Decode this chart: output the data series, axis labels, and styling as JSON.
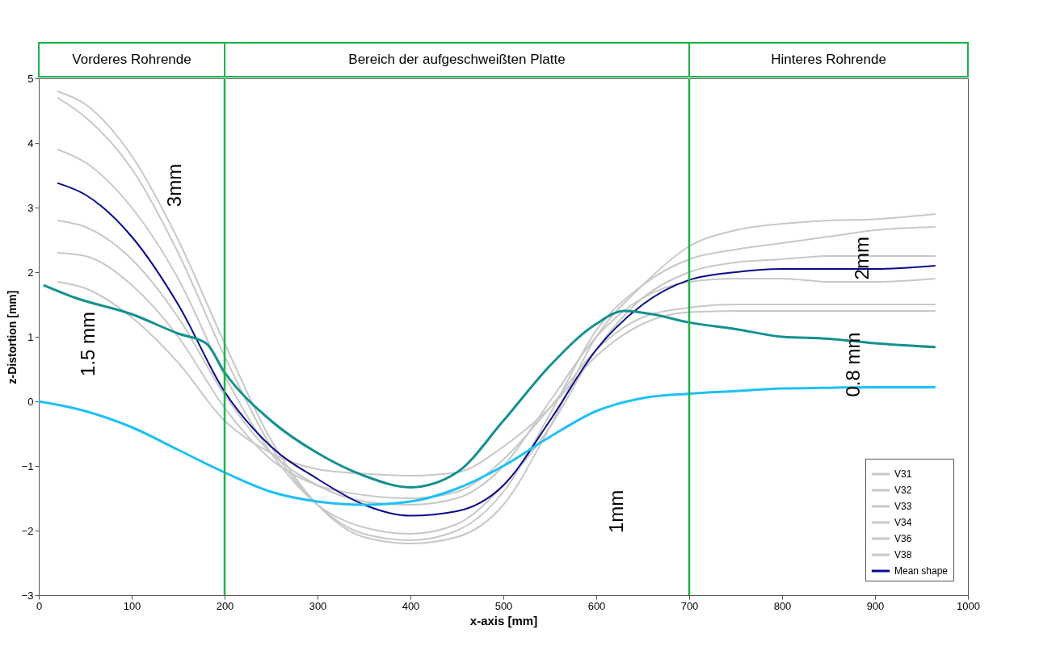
{
  "chart_data": {
    "type": "line",
    "xlabel": "x-axis [mm]",
    "ylabel": "z-Distortion [mm]",
    "x": [
      20,
      50,
      100,
      150,
      200,
      250,
      300,
      350,
      400,
      450,
      500,
      550,
      600,
      650,
      700,
      750,
      800,
      850,
      900,
      965
    ],
    "series": [
      {
        "name": "V31",
        "color": "#c8c8c8",
        "values": [
          4.8,
          4.6,
          3.8,
          2.5,
          0.9,
          -0.6,
          -1.6,
          -2.1,
          -2.2,
          -2.1,
          -1.6,
          -0.4,
          1.0,
          1.8,
          2.4,
          2.65,
          2.75,
          2.8,
          2.82,
          2.9
        ]
      },
      {
        "name": "V32",
        "color": "#c8c8c8",
        "values": [
          4.7,
          4.4,
          3.6,
          2.3,
          0.7,
          -0.7,
          -1.6,
          -2.05,
          -2.15,
          -2.0,
          -1.4,
          -0.2,
          1.1,
          1.8,
          2.2,
          2.35,
          2.45,
          2.55,
          2.65,
          2.7
        ]
      },
      {
        "name": "V33",
        "color": "#c8c8c8",
        "values": [
          3.9,
          3.7,
          3.0,
          1.9,
          0.4,
          -0.8,
          -1.6,
          -1.95,
          -2.05,
          -1.9,
          -1.3,
          -0.4,
          0.8,
          1.6,
          2.0,
          2.15,
          2.2,
          2.25,
          2.25,
          2.25
        ]
      },
      {
        "name": "V34",
        "color": "#c8c8c8",
        "values": [
          2.8,
          2.7,
          2.2,
          1.3,
          0.1,
          -0.8,
          -1.3,
          -1.55,
          -1.6,
          -1.5,
          -1.0,
          0.0,
          1.0,
          1.6,
          1.85,
          1.9,
          1.9,
          1.85,
          1.85,
          1.9
        ]
      },
      {
        "name": "V36",
        "color": "#c8c8c8",
        "values": [
          2.3,
          2.25,
          1.8,
          1.0,
          -0.1,
          -0.9,
          -1.3,
          -1.45,
          -1.5,
          -1.4,
          -0.9,
          -0.1,
          0.8,
          1.3,
          1.45,
          1.5,
          1.5,
          1.5,
          1.5,
          1.5
        ]
      },
      {
        "name": "V38",
        "color": "#c8c8c8",
        "values": [
          1.85,
          1.75,
          1.3,
          0.6,
          -0.3,
          -0.8,
          -1.05,
          -1.12,
          -1.15,
          -1.1,
          -0.7,
          -0.1,
          0.7,
          1.2,
          1.38,
          1.4,
          1.4,
          1.4,
          1.4,
          1.4
        ]
      },
      {
        "name": "Mean shape",
        "color": "#0a0a8c",
        "values": [
          3.38,
          3.2,
          2.55,
          1.5,
          0.15,
          -0.7,
          -1.2,
          -1.6,
          -1.77,
          -1.7,
          -1.3,
          -0.3,
          0.8,
          1.5,
          1.88,
          2.0,
          2.05,
          2.05,
          2.05,
          2.1
        ]
      },
      {
        "color": "#159090",
        "x": [
          5,
          40,
          100,
          150,
          180,
          200,
          250,
          300,
          350,
          400,
          450,
          500,
          550,
          600,
          630,
          660,
          700,
          750,
          800,
          850,
          900,
          965
        ],
        "values": [
          1.8,
          1.6,
          1.35,
          1.05,
          0.9,
          0.45,
          -0.3,
          -0.8,
          -1.15,
          -1.33,
          -1.1,
          -0.3,
          0.55,
          1.2,
          1.4,
          1.35,
          1.22,
          1.12,
          1.0,
          0.97,
          0.9,
          0.84
        ]
      },
      {
        "color": "#1ec0f5",
        "x": [
          0,
          50,
          100,
          150,
          200,
          250,
          300,
          350,
          400,
          450,
          500,
          550,
          600,
          650,
          700,
          750,
          800,
          850,
          900,
          965
        ],
        "values": [
          0,
          -0.15,
          -0.4,
          -0.75,
          -1.1,
          -1.4,
          -1.55,
          -1.6,
          -1.55,
          -1.35,
          -1.0,
          -0.55,
          -0.15,
          0.05,
          0.12,
          0.16,
          0.2,
          0.21,
          0.22,
          0.22
        ]
      }
    ],
    "xlim": [
      0,
      1000
    ],
    "xticks": [
      0,
      100,
      200,
      300,
      400,
      500,
      600,
      700,
      800,
      900,
      1000
    ],
    "ylim": [
      -3,
      5
    ],
    "yticks": [
      -3,
      -2,
      -1,
      0,
      1,
      2,
      3,
      4,
      5
    ],
    "grid": false,
    "legend": "bottom right",
    "ref_lines": [
      {
        "axis": "x",
        "value": 200,
        "color": "#1db34a"
      },
      {
        "axis": "x",
        "value": 700,
        "color": "#1db34a"
      }
    ],
    "annotations": [
      "Vorderes Rohrende",
      "Bereich der aufgeschweißten Platte",
      "Hinteres Rohrende",
      "3mm",
      "1.5 mm",
      "2mm",
      "0.8 mm",
      "1mm"
    ]
  }
}
